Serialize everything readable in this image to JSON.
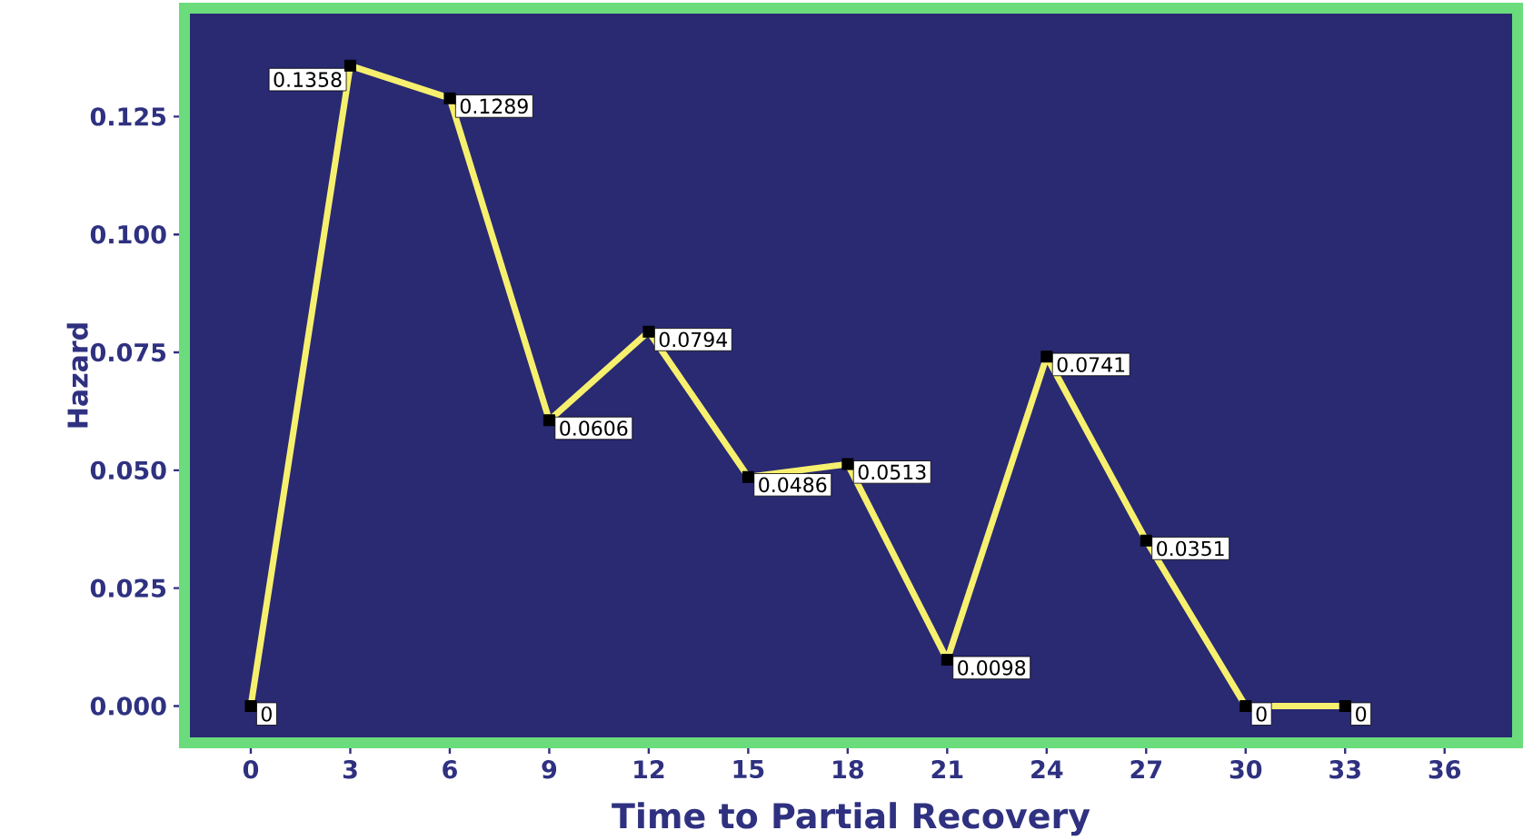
{
  "chart_data": {
    "type": "line",
    "xlabel": "Time to Partial Recovery",
    "ylabel": "Hazard",
    "x": [
      0,
      3,
      6,
      9,
      12,
      15,
      18,
      21,
      24,
      27,
      30,
      33
    ],
    "values": [
      0,
      0.1358,
      0.1289,
      0.0606,
      0.0794,
      0.0486,
      0.0513,
      0.0098,
      0.0741,
      0.0351,
      0,
      0
    ],
    "color": "#f7f06e",
    "marker": "square",
    "data_labels": true,
    "xlim": [
      -2,
      38.2
    ],
    "ylim": [
      -0.0078,
      0.148
    ],
    "xticks": [
      0,
      3,
      6,
      9,
      12,
      15,
      18,
      21,
      24,
      27,
      30,
      33,
      36
    ],
    "yticks": [
      {
        "value": 0,
        "label": "0.000"
      },
      {
        "value": 0.025,
        "label": "0.025"
      },
      {
        "value": 0.05,
        "label": "0.050"
      },
      {
        "value": 0.075,
        "label": "0.075"
      },
      {
        "value": 0.1,
        "label": "0.100"
      },
      {
        "value": 0.125,
        "label": "0.125"
      }
    ],
    "line_style": "solid"
  }
}
